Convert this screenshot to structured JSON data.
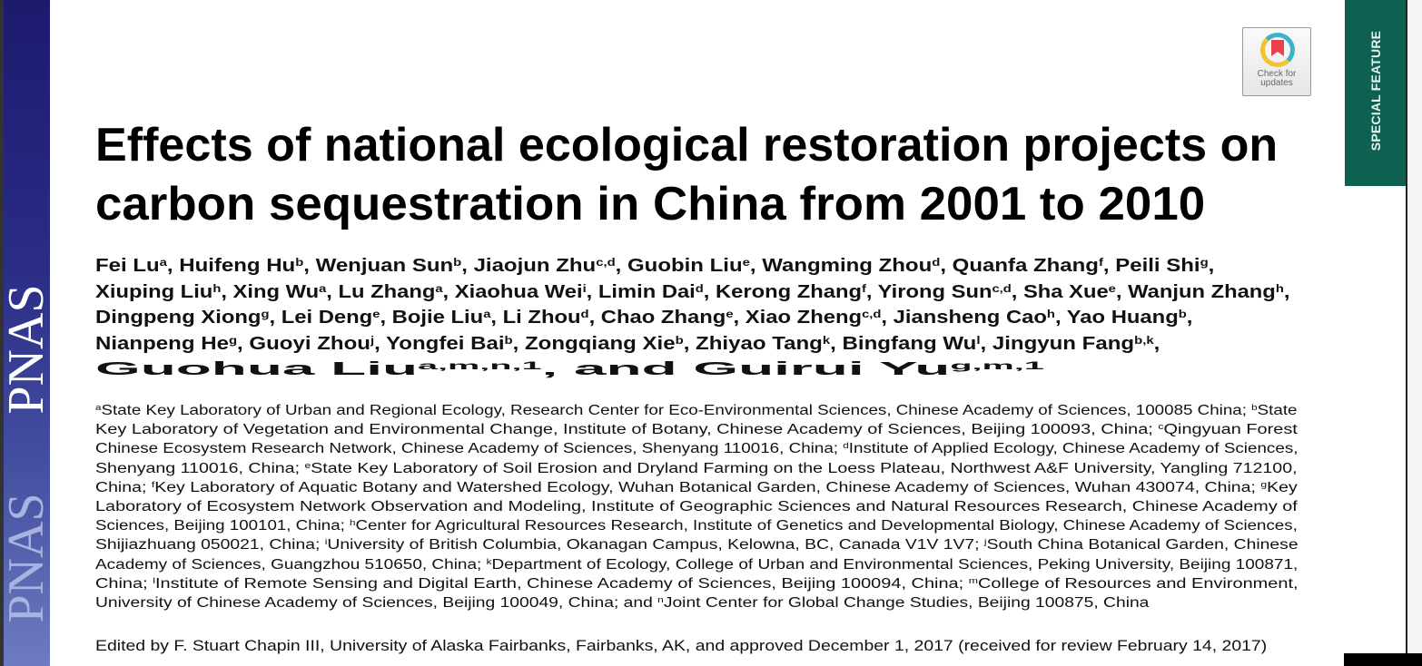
{
  "sidebar": {
    "logo_text": "PNAS",
    "logo_text_faded": "PNAS"
  },
  "badge": {
    "special_feature": "SPECIAL FEATURE",
    "check_updates_line1": "Check for",
    "check_updates_line2": "updates",
    "check_icon": "bookmark-ring-icon"
  },
  "colors": {
    "pnas_blue": "#2a2c86",
    "special_green": "#0e6150",
    "check_red": "#e8434d",
    "check_teal": "#3bb3c8",
    "check_yellow": "#f1c232"
  },
  "title_lines": [
    "Effects of national ecological restoration projects on",
    "carbon sequestration in China from 2001 to 2010"
  ],
  "author_lines": [
    [
      {
        "n": "Fei Lu",
        "s": "a"
      },
      {
        "n": ", Huifeng Hu",
        "s": "b"
      },
      {
        "n": ", Wenjuan Sun",
        "s": "b"
      },
      {
        "n": ", Jiaojun Zhu",
        "s": "c,d"
      },
      {
        "n": ", Guobin Liu",
        "s": "e"
      },
      {
        "n": ", Wangming Zhou",
        "s": "d"
      },
      {
        "n": ", Quanfa Zhang",
        "s": "f"
      },
      {
        "n": ", Peili Shi",
        "s": "g"
      },
      {
        "n": ",",
        "s": ""
      }
    ],
    [
      {
        "n": "Xiuping Liu",
        "s": "h"
      },
      {
        "n": ", Xing Wu",
        "s": "a"
      },
      {
        "n": ", Lu Zhang",
        "s": "a"
      },
      {
        "n": ", Xiaohua Wei",
        "s": "i"
      },
      {
        "n": ", Limin Dai",
        "s": "d"
      },
      {
        "n": ", Kerong Zhang",
        "s": "f"
      },
      {
        "n": ", Yirong Sun",
        "s": "c,d"
      },
      {
        "n": ", Sha Xue",
        "s": "e"
      },
      {
        "n": ", Wanjun Zhang",
        "s": "h"
      },
      {
        "n": ",",
        "s": ""
      }
    ],
    [
      {
        "n": "Dingpeng Xiong",
        "s": "g"
      },
      {
        "n": ", Lei Deng",
        "s": "e"
      },
      {
        "n": ", Bojie Liu",
        "s": "a"
      },
      {
        "n": ", Li Zhou",
        "s": "d"
      },
      {
        "n": ", Chao Zhang",
        "s": "e"
      },
      {
        "n": ", Xiao Zheng",
        "s": "c,d"
      },
      {
        "n": ", Jiansheng Cao",
        "s": "h"
      },
      {
        "n": ", Yao Huang",
        "s": "b"
      },
      {
        "n": ",",
        "s": ""
      }
    ],
    [
      {
        "n": "Nianpeng He",
        "s": "g"
      },
      {
        "n": ", Guoyi Zhou",
        "s": "j"
      },
      {
        "n": ", Yongfei Bai",
        "s": "b"
      },
      {
        "n": ", Zongqiang Xie",
        "s": "b"
      },
      {
        "n": ", Zhiyao Tang",
        "s": "k"
      },
      {
        "n": ", Bingfang Wu",
        "s": "l"
      },
      {
        "n": ", Jingyun Fang",
        "s": "b,k"
      },
      {
        "n": ",",
        "s": ""
      }
    ],
    [
      {
        "n": "Guohua Liu",
        "s": "a,m,n,1"
      },
      {
        "n": ", and Guirui Yu",
        "s": "g,m,1"
      }
    ]
  ],
  "affiliation_lines": [
    [
      {
        "s": "a",
        "t": "State Key Laboratory of Urban and Regional Ecology, Research Center for Eco-Environmental Sciences, Chinese Academy of Sciences, 100085 China; "
      },
      {
        "s": "b",
        "t": "State"
      }
    ],
    [
      {
        "s": "",
        "t": "Key Laboratory of Vegetation and Environmental Change, Institute of Botany, Chinese Academy of Sciences, Beijing 100093, China; "
      },
      {
        "s": "c",
        "t": "Qingyuan Forest"
      }
    ],
    [
      {
        "s": "",
        "t": "Chinese Ecosystem Research Network, Chinese Academy of Sciences, Shenyang 110016, China; "
      },
      {
        "s": "d",
        "t": "Institute of Applied Ecology, Chinese Academy of Sciences,"
      }
    ],
    [
      {
        "s": "",
        "t": "Shenyang 110016, China; "
      },
      {
        "s": "e",
        "t": "State Key Laboratory of Soil Erosion and Dryland Farming on the Loess Plateau, Northwest A&F University, Yangling 712100,"
      }
    ],
    [
      {
        "s": "",
        "t": "China; "
      },
      {
        "s": "f",
        "t": "Key Laboratory of Aquatic Botany and Watershed Ecology, Wuhan Botanical Garden, Chinese Academy of Sciences, Wuhan 430074, China; "
      },
      {
        "s": "g",
        "t": "Key"
      }
    ],
    [
      {
        "s": "",
        "t": "Laboratory of Ecosystem Network Observation and Modeling, Institute of Geographic Sciences and Natural Resources Research, Chinese Academy of"
      }
    ],
    [
      {
        "s": "",
        "t": "Sciences, Beijing 100101, China; "
      },
      {
        "s": "h",
        "t": "Center for Agricultural Resources Research, Institute of Genetics and Developmental Biology, Chinese Academy of Sciences,"
      }
    ],
    [
      {
        "s": "",
        "t": "Shijiazhuang 050021, China; "
      },
      {
        "s": "i",
        "t": "University of British Columbia, Okanagan Campus, Kelowna, BC, Canada V1V 1V7; "
      },
      {
        "s": "j",
        "t": "South China Botanical Garden, Chinese"
      }
    ],
    [
      {
        "s": "",
        "t": "Academy of Sciences, Guangzhou 510650, China; "
      },
      {
        "s": "k",
        "t": "Department of Ecology, College of Urban and Environmental Sciences, Peking University, Beijing 100871,"
      }
    ],
    [
      {
        "s": "",
        "t": "China; "
      },
      {
        "s": "l",
        "t": "Institute of Remote Sensing and Digital Earth, Chinese Academy of Sciences, Beijing 100094, China; "
      },
      {
        "s": "m",
        "t": "College of Resources and Environment,"
      }
    ],
    [
      {
        "s": "",
        "t": "University of Chinese Academy of Sciences, Beijing 100049, China; and "
      },
      {
        "s": "n",
        "t": "Joint Center for Global Change Studies, Beijing 100875, China"
      }
    ]
  ],
  "edited_by": "Edited by F. Stuart Chapin III, University of Alaska Fairbanks, Fairbanks, AK, and approved December 1, 2017 (received for review February 14, 2017)"
}
